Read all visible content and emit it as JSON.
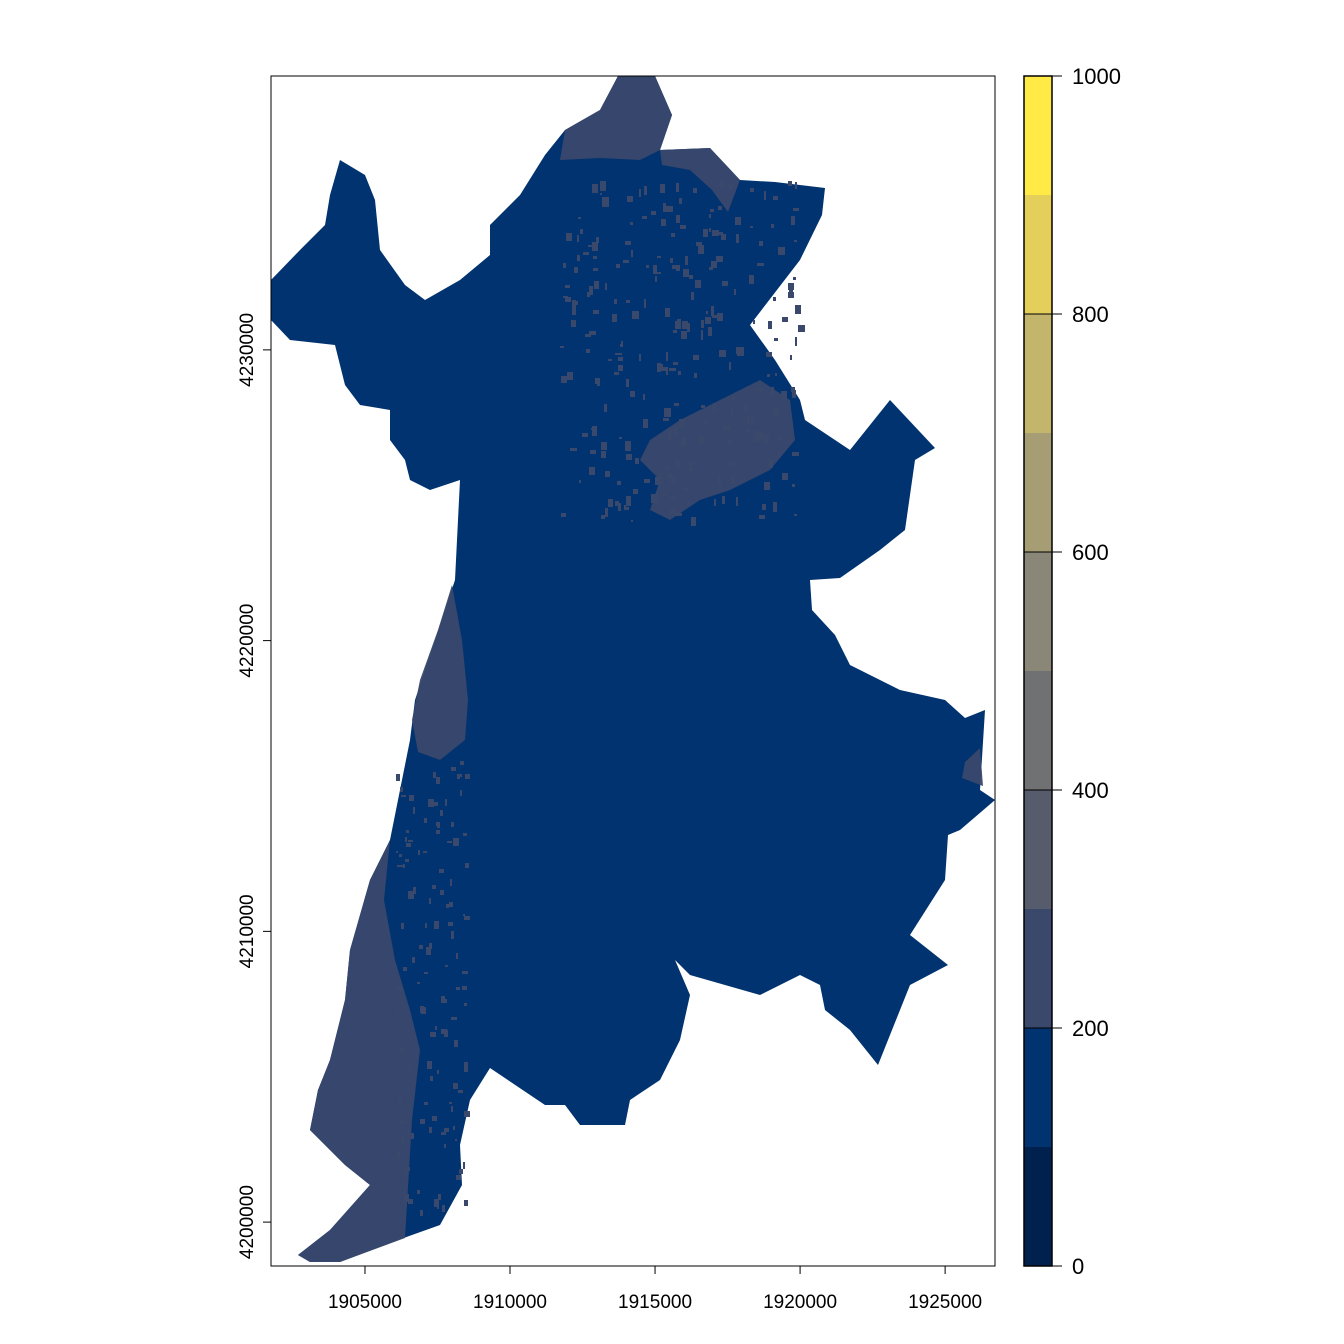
{
  "chart_data": {
    "type": "heatmap",
    "title": "",
    "xlabel": "",
    "ylabel": "",
    "xlim": [
      1901760,
      1926720
    ],
    "ylim": [
      4198490,
      4239420
    ],
    "x_ticks": [
      1905000,
      1910000,
      1915000,
      1920000,
      1925000
    ],
    "x_tick_labels": [
      "1905000",
      "1910000",
      "1915000",
      "1920000",
      "1925000"
    ],
    "y_ticks": [
      4200000,
      4210000,
      4220000,
      4230000
    ],
    "y_tick_labels": [
      "4200000",
      "4210000",
      "4220000",
      "4230000"
    ],
    "legend": {
      "placement": "right",
      "range": [
        0,
        1000
      ],
      "breaks": [
        0,
        100,
        200,
        300,
        400,
        500,
        600,
        700,
        800,
        900,
        1000
      ],
      "tick_values": [
        0,
        200,
        400,
        600,
        800,
        1000
      ],
      "tick_labels": [
        "0",
        "200",
        "400",
        "600",
        "800",
        "1000"
      ],
      "colors": [
        "#00204D",
        "#00336F",
        "#39486B",
        "#575C6D",
        "#707173",
        "#8A8779",
        "#A69D75",
        "#C4B56C",
        "#E4CF5B",
        "#FFEA46"
      ]
    },
    "raster_classes_present": [
      {
        "range": [
          100,
          200
        ],
        "color": "#00336F",
        "share": "dominant"
      },
      {
        "range": [
          200,
          300
        ],
        "color": "#39486B",
        "share": "minor"
      }
    ]
  }
}
